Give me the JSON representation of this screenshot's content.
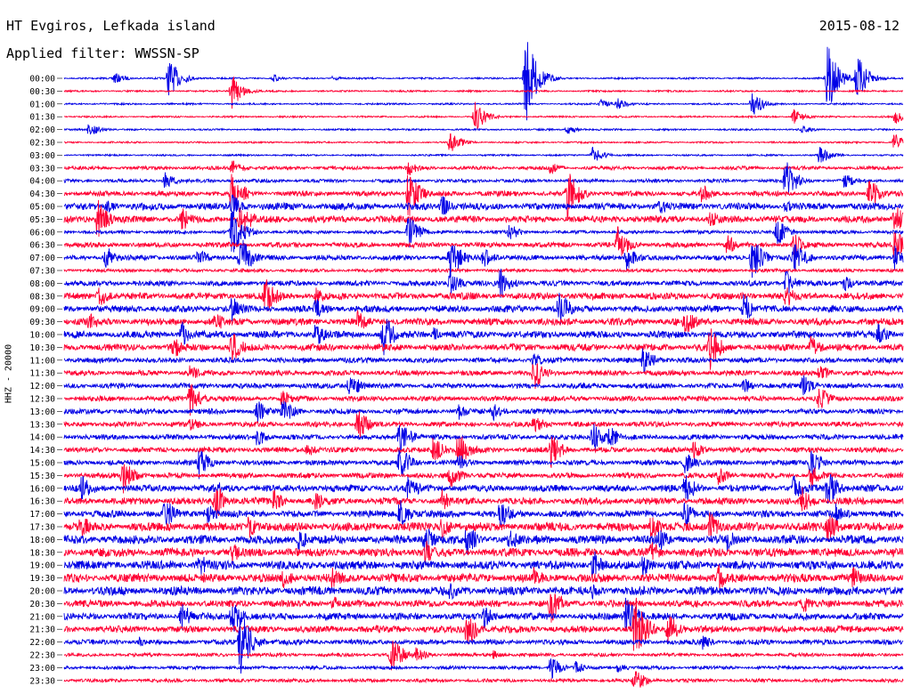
{
  "header": {
    "station": "HT Evgiros, Lefkada island",
    "filter": "Applied filter: WWSSN-SP",
    "date": "2015-08-12"
  },
  "chart_data": {
    "type": "line",
    "title": "HT Evgiros, Lefkada island",
    "subtitle": "Applied filter: WWSSN-SP",
    "date": "2015-08-12",
    "ylabel": "HHZ - 20000",
    "xlabel": "",
    "trace_colors": [
      "#0000e6",
      "#ff0033"
    ],
    "tick_labels": [
      "00:00",
      "00:30",
      "01:00",
      "01:30",
      "02:00",
      "02:30",
      "03:00",
      "03:30",
      "04:00",
      "04:30",
      "05:00",
      "05:30",
      "06:00",
      "06:30",
      "07:00",
      "07:30",
      "08:00",
      "08:30",
      "09:00",
      "09:30",
      "10:00",
      "10:30",
      "11:00",
      "11:30",
      "12:00",
      "12:30",
      "13:00",
      "13:30",
      "14:00",
      "14:30",
      "15:00",
      "15:30",
      "16:00",
      "16:30",
      "17:00",
      "17:30",
      "18:00",
      "18:30",
      "19:00",
      "19:30",
      "20:00",
      "20:30",
      "21:00",
      "21:30",
      "22:00",
      "22:30",
      "23:00",
      "23:30"
    ],
    "noise_levels": [
      1,
      1,
      1,
      1,
      1,
      1,
      1,
      2,
      2,
      3,
      4,
      4,
      2,
      3,
      3,
      2,
      3,
      4,
      4,
      4,
      4,
      4,
      3,
      3,
      3,
      3,
      3,
      3,
      3,
      3,
      3,
      3,
      4,
      4,
      4,
      5,
      5,
      5,
      5,
      5,
      5,
      4,
      4,
      4,
      3,
      2,
      2,
      2
    ],
    "events": [
      {
        "row": 0,
        "t": 0.06,
        "amp": 7
      },
      {
        "row": 0,
        "t": 0.125,
        "amp": 24
      },
      {
        "row": 0,
        "t": 0.25,
        "amp": 5
      },
      {
        "row": 0,
        "t": 0.32,
        "amp": 3
      },
      {
        "row": 0,
        "t": 0.55,
        "amp": 55
      },
      {
        "row": 0,
        "t": 0.91,
        "amp": 40
      },
      {
        "row": 0,
        "t": 0.945,
        "amp": 28
      },
      {
        "row": 1,
        "t": 0.2,
        "amp": 20
      },
      {
        "row": 2,
        "t": 0.64,
        "amp": 6
      },
      {
        "row": 2,
        "t": 0.66,
        "amp": 7
      },
      {
        "row": 2,
        "t": 0.82,
        "amp": 16
      },
      {
        "row": 3,
        "t": 0.49,
        "amp": 18
      },
      {
        "row": 3,
        "t": 0.87,
        "amp": 9
      },
      {
        "row": 3,
        "t": 0.99,
        "amp": 9
      },
      {
        "row": 4,
        "t": 0.03,
        "amp": 9
      },
      {
        "row": 4,
        "t": 0.6,
        "amp": 5
      },
      {
        "row": 4,
        "t": 0.88,
        "amp": 5
      },
      {
        "row": 5,
        "t": 0.46,
        "amp": 14
      },
      {
        "row": 5,
        "t": 0.99,
        "amp": 12
      },
      {
        "row": 6,
        "t": 0.63,
        "amp": 10
      },
      {
        "row": 6,
        "t": 0.9,
        "amp": 12
      },
      {
        "row": 7,
        "t": 0.2,
        "amp": 10
      },
      {
        "row": 7,
        "t": 0.41,
        "amp": 10
      },
      {
        "row": 7,
        "t": 0.58,
        "amp": 8
      },
      {
        "row": 8,
        "t": 0.12,
        "amp": 10
      },
      {
        "row": 8,
        "t": 0.86,
        "amp": 26
      },
      {
        "row": 8,
        "t": 0.93,
        "amp": 10
      },
      {
        "row": 9,
        "t": 0.2,
        "amp": 28
      },
      {
        "row": 9,
        "t": 0.41,
        "amp": 30
      },
      {
        "row": 9,
        "t": 0.6,
        "amp": 32
      },
      {
        "row": 9,
        "t": 0.76,
        "amp": 12
      },
      {
        "row": 9,
        "t": 0.96,
        "amp": 20
      },
      {
        "row": 10,
        "t": 0.05,
        "amp": 10
      },
      {
        "row": 10,
        "t": 0.2,
        "amp": 16
      },
      {
        "row": 10,
        "t": 0.45,
        "amp": 14
      },
      {
        "row": 10,
        "t": 0.71,
        "amp": 10
      },
      {
        "row": 10,
        "t": 0.86,
        "amp": 8
      },
      {
        "row": 11,
        "t": 0.04,
        "amp": 26
      },
      {
        "row": 11,
        "t": 0.14,
        "amp": 16
      },
      {
        "row": 11,
        "t": 0.21,
        "amp": 24
      },
      {
        "row": 11,
        "t": 0.77,
        "amp": 12
      },
      {
        "row": 11,
        "t": 0.99,
        "amp": 18
      },
      {
        "row": 12,
        "t": 0.2,
        "amp": 30
      },
      {
        "row": 12,
        "t": 0.41,
        "amp": 22
      },
      {
        "row": 12,
        "t": 0.53,
        "amp": 12
      },
      {
        "row": 12,
        "t": 0.85,
        "amp": 18
      },
      {
        "row": 13,
        "t": 0.66,
        "amp": 22
      },
      {
        "row": 13,
        "t": 0.79,
        "amp": 14
      },
      {
        "row": 13,
        "t": 0.87,
        "amp": 16
      },
      {
        "row": 13,
        "t": 0.99,
        "amp": 20
      },
      {
        "row": 14,
        "t": 0.05,
        "amp": 14
      },
      {
        "row": 14,
        "t": 0.16,
        "amp": 12
      },
      {
        "row": 14,
        "t": 0.21,
        "amp": 28
      },
      {
        "row": 14,
        "t": 0.46,
        "amp": 30
      },
      {
        "row": 14,
        "t": 0.5,
        "amp": 12
      },
      {
        "row": 14,
        "t": 0.67,
        "amp": 16
      },
      {
        "row": 14,
        "t": 0.82,
        "amp": 26
      },
      {
        "row": 14,
        "t": 0.87,
        "amp": 22
      },
      {
        "row": 14,
        "t": 0.99,
        "amp": 14
      },
      {
        "row": 16,
        "t": 0.46,
        "amp": 16
      },
      {
        "row": 16,
        "t": 0.52,
        "amp": 20
      },
      {
        "row": 16,
        "t": 0.86,
        "amp": 16
      },
      {
        "row": 16,
        "t": 0.93,
        "amp": 10
      },
      {
        "row": 17,
        "t": 0.04,
        "amp": 16
      },
      {
        "row": 17,
        "t": 0.24,
        "amp": 26
      },
      {
        "row": 17,
        "t": 0.3,
        "amp": 10
      },
      {
        "row": 17,
        "t": 0.86,
        "amp": 16
      },
      {
        "row": 18,
        "t": 0.2,
        "amp": 16
      },
      {
        "row": 18,
        "t": 0.3,
        "amp": 14
      },
      {
        "row": 18,
        "t": 0.59,
        "amp": 24
      },
      {
        "row": 18,
        "t": 0.81,
        "amp": 20
      },
      {
        "row": 19,
        "t": 0.03,
        "amp": 14
      },
      {
        "row": 19,
        "t": 0.18,
        "amp": 14
      },
      {
        "row": 19,
        "t": 0.35,
        "amp": 16
      },
      {
        "row": 19,
        "t": 0.74,
        "amp": 18
      },
      {
        "row": 20,
        "t": 0.14,
        "amp": 16
      },
      {
        "row": 20,
        "t": 0.3,
        "amp": 16
      },
      {
        "row": 20,
        "t": 0.38,
        "amp": 28
      },
      {
        "row": 20,
        "t": 0.44,
        "amp": 10
      },
      {
        "row": 20,
        "t": 0.97,
        "amp": 14
      },
      {
        "row": 21,
        "t": 0.13,
        "amp": 14
      },
      {
        "row": 21,
        "t": 0.2,
        "amp": 22
      },
      {
        "row": 21,
        "t": 0.77,
        "amp": 26
      },
      {
        "row": 21,
        "t": 0.89,
        "amp": 14
      },
      {
        "row": 22,
        "t": 0.69,
        "amp": 18
      },
      {
        "row": 22,
        "t": 0.56,
        "amp": 10
      },
      {
        "row": 23,
        "t": 0.15,
        "amp": 10
      },
      {
        "row": 23,
        "t": 0.56,
        "amp": 22
      },
      {
        "row": 23,
        "t": 0.9,
        "amp": 12
      },
      {
        "row": 24,
        "t": 0.34,
        "amp": 18
      },
      {
        "row": 24,
        "t": 0.81,
        "amp": 10
      },
      {
        "row": 24,
        "t": 0.88,
        "amp": 14
      },
      {
        "row": 25,
        "t": 0.15,
        "amp": 20
      },
      {
        "row": 25,
        "t": 0.26,
        "amp": 12
      },
      {
        "row": 25,
        "t": 0.9,
        "amp": 16
      },
      {
        "row": 26,
        "t": 0.23,
        "amp": 14
      },
      {
        "row": 26,
        "t": 0.26,
        "amp": 18
      },
      {
        "row": 26,
        "t": 0.51,
        "amp": 12
      },
      {
        "row": 26,
        "t": 0.47,
        "amp": 10
      },
      {
        "row": 27,
        "t": 0.15,
        "amp": 10
      },
      {
        "row": 27,
        "t": 0.35,
        "amp": 22
      },
      {
        "row": 27,
        "t": 0.56,
        "amp": 14
      },
      {
        "row": 28,
        "t": 0.23,
        "amp": 12
      },
      {
        "row": 28,
        "t": 0.4,
        "amp": 22
      },
      {
        "row": 28,
        "t": 0.63,
        "amp": 20
      },
      {
        "row": 28,
        "t": 0.65,
        "amp": 14
      },
      {
        "row": 29,
        "t": 0.29,
        "amp": 10
      },
      {
        "row": 29,
        "t": 0.44,
        "amp": 18
      },
      {
        "row": 29,
        "t": 0.47,
        "amp": 24
      },
      {
        "row": 29,
        "t": 0.58,
        "amp": 22
      },
      {
        "row": 29,
        "t": 0.75,
        "amp": 12
      },
      {
        "row": 30,
        "t": 0.16,
        "amp": 20
      },
      {
        "row": 30,
        "t": 0.4,
        "amp": 24
      },
      {
        "row": 30,
        "t": 0.47,
        "amp": 12
      },
      {
        "row": 30,
        "t": 0.74,
        "amp": 14
      },
      {
        "row": 30,
        "t": 0.89,
        "amp": 18
      },
      {
        "row": 31,
        "t": 0.07,
        "amp": 22
      },
      {
        "row": 31,
        "t": 0.46,
        "amp": 16
      },
      {
        "row": 31,
        "t": 0.78,
        "amp": 12
      },
      {
        "row": 31,
        "t": 0.89,
        "amp": 14
      },
      {
        "row": 32,
        "t": 0.02,
        "amp": 20
      },
      {
        "row": 32,
        "t": 0.18,
        "amp": 10
      },
      {
        "row": 32,
        "t": 0.41,
        "amp": 18
      },
      {
        "row": 32,
        "t": 0.74,
        "amp": 20
      },
      {
        "row": 32,
        "t": 0.87,
        "amp": 16
      },
      {
        "row": 32,
        "t": 0.91,
        "amp": 24
      },
      {
        "row": 33,
        "t": 0.18,
        "amp": 24
      },
      {
        "row": 33,
        "t": 0.25,
        "amp": 14
      },
      {
        "row": 33,
        "t": 0.3,
        "amp": 12
      },
      {
        "row": 33,
        "t": 0.45,
        "amp": 14
      },
      {
        "row": 33,
        "t": 0.88,
        "amp": 16
      },
      {
        "row": 34,
        "t": 0.12,
        "amp": 20
      },
      {
        "row": 34,
        "t": 0.17,
        "amp": 16
      },
      {
        "row": 34,
        "t": 0.4,
        "amp": 18
      },
      {
        "row": 34,
        "t": 0.52,
        "amp": 20
      },
      {
        "row": 34,
        "t": 0.74,
        "amp": 18
      },
      {
        "row": 34,
        "t": 0.92,
        "amp": 14
      },
      {
        "row": 35,
        "t": 0.02,
        "amp": 16
      },
      {
        "row": 35,
        "t": 0.22,
        "amp": 14
      },
      {
        "row": 35,
        "t": 0.45,
        "amp": 16
      },
      {
        "row": 35,
        "t": 0.7,
        "amp": 16
      },
      {
        "row": 35,
        "t": 0.77,
        "amp": 18
      },
      {
        "row": 35,
        "t": 0.91,
        "amp": 20
      },
      {
        "row": 36,
        "t": 0.28,
        "amp": 14
      },
      {
        "row": 36,
        "t": 0.43,
        "amp": 18
      },
      {
        "row": 36,
        "t": 0.48,
        "amp": 20
      },
      {
        "row": 36,
        "t": 0.53,
        "amp": 16
      },
      {
        "row": 36,
        "t": 0.71,
        "amp": 14
      },
      {
        "row": 36,
        "t": 0.79,
        "amp": 14
      },
      {
        "row": 37,
        "t": 0.2,
        "amp": 14
      },
      {
        "row": 37,
        "t": 0.43,
        "amp": 16
      },
      {
        "row": 37,
        "t": 0.7,
        "amp": 14
      },
      {
        "row": 38,
        "t": 0.16,
        "amp": 18
      },
      {
        "row": 38,
        "t": 0.63,
        "amp": 20
      },
      {
        "row": 38,
        "t": 0.69,
        "amp": 14
      },
      {
        "row": 39,
        "t": 0.26,
        "amp": 14
      },
      {
        "row": 39,
        "t": 0.32,
        "amp": 16
      },
      {
        "row": 39,
        "t": 0.56,
        "amp": 14
      },
      {
        "row": 39,
        "t": 0.78,
        "amp": 16
      },
      {
        "row": 39,
        "t": 0.94,
        "amp": 14
      },
      {
        "row": 40,
        "t": 0.46,
        "amp": 12
      },
      {
        "row": 40,
        "t": 0.63,
        "amp": 10
      },
      {
        "row": 41,
        "t": 0.32,
        "amp": 10
      },
      {
        "row": 41,
        "t": 0.58,
        "amp": 24
      },
      {
        "row": 41,
        "t": 0.88,
        "amp": 12
      },
      {
        "row": 42,
        "t": 0.14,
        "amp": 18
      },
      {
        "row": 42,
        "t": 0.2,
        "amp": 22
      },
      {
        "row": 42,
        "t": 0.5,
        "amp": 16
      },
      {
        "row": 42,
        "t": 0.67,
        "amp": 30
      },
      {
        "row": 43,
        "t": 0.48,
        "amp": 22
      },
      {
        "row": 43,
        "t": 0.68,
        "amp": 44
      },
      {
        "row": 43,
        "t": 0.72,
        "amp": 20
      },
      {
        "row": 44,
        "t": 0.21,
        "amp": 40
      },
      {
        "row": 44,
        "t": 0.09,
        "amp": 6
      },
      {
        "row": 44,
        "t": 0.76,
        "amp": 10
      },
      {
        "row": 45,
        "t": 0.39,
        "amp": 24
      },
      {
        "row": 45,
        "t": 0.42,
        "amp": 10
      },
      {
        "row": 45,
        "t": 0.51,
        "amp": 6
      },
      {
        "row": 46,
        "t": 0.58,
        "amp": 14
      },
      {
        "row": 46,
        "t": 0.61,
        "amp": 8
      },
      {
        "row": 46,
        "t": 0.66,
        "amp": 6
      },
      {
        "row": 47,
        "t": 0.68,
        "amp": 16
      }
    ]
  }
}
